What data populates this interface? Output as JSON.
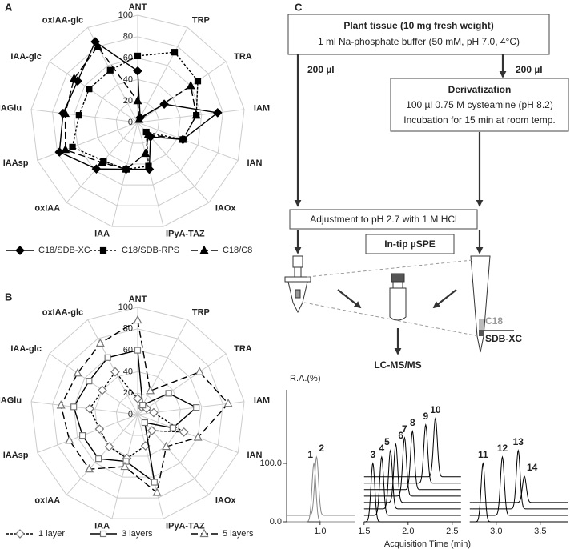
{
  "chart_data": [
    {
      "type": "radar",
      "panel_label": "A",
      "categories": [
        "ANT",
        "TRP",
        "TRA",
        "IAM",
        "IAN",
        "IAOx",
        "IPyA-TAZ",
        "IAA",
        "oxIAA",
        "IAAsp",
        "IAGlu",
        "IAA-glc",
        "oxIAA-glc"
      ],
      "rlim": [
        0,
        100
      ],
      "rticks": [
        0,
        20,
        40,
        60,
        80,
        100
      ],
      "grid": true,
      "legend": "bottom",
      "series": [
        {
          "name": "C18/SDB-XC",
          "color": "#000000",
          "marker": "diamond",
          "marker_fill": "#000000",
          "dash": "solid",
          "values": [
            48,
            5,
            30,
            75,
            45,
            18,
            45,
            45,
            58,
            78,
            70,
            68,
            85
          ]
        },
        {
          "name": "C18/SDB-RPS",
          "color": "#000000",
          "marker": "square",
          "marker_fill": "#000000",
          "dash": "dash",
          "values": [
            62,
            74,
            68,
            55,
            45,
            12,
            42,
            45,
            48,
            65,
            55,
            55,
            55
          ]
        },
        {
          "name": "C18/C8",
          "color": "#000000",
          "marker": "triangle",
          "marker_fill": "#000000",
          "dash": "longdash",
          "values": [
            20,
            3,
            60,
            55,
            45,
            15,
            30,
            45,
            50,
            72,
            68,
            72,
            80
          ]
        }
      ]
    },
    {
      "type": "radar",
      "panel_label": "B",
      "categories": [
        "ANT",
        "TRP",
        "TRA",
        "IAM",
        "IAN",
        "IAOx",
        "IPyA-TAZ",
        "IAA",
        "oxIAA",
        "IAAsp",
        "IAGlu",
        "IAA-glc",
        "oxIAA-glc"
      ],
      "rlim": [
        0,
        100
      ],
      "rticks": [
        0,
        20,
        40,
        60,
        80,
        100
      ],
      "grid": true,
      "legend": "bottom",
      "series": [
        {
          "name": "1 layer",
          "color": "#000000",
          "marker": "diamond",
          "marker_fill": "#ffffff",
          "marker_color": "#777777",
          "dash": "dash",
          "values": [
            15,
            8,
            10,
            15,
            46,
            20,
            30,
            42,
            40,
            38,
            45,
            40,
            45
          ]
        },
        {
          "name": "3 layers",
          "color": "#000000",
          "marker": "square",
          "marker_fill": "#ffffff",
          "marker_color": "#777777",
          "dash": "solid",
          "values": [
            60,
            10,
            35,
            55,
            35,
            10,
            65,
            45,
            55,
            55,
            60,
            55,
            60
          ]
        },
        {
          "name": "5 layers",
          "color": "#000000",
          "marker": "triangle",
          "marker_fill": "#ffffff",
          "marker_color": "#777777",
          "dash": "longdash",
          "values": [
            88,
            25,
            70,
            85,
            60,
            40,
            75,
            50,
            68,
            68,
            72,
            68,
            75
          ]
        }
      ]
    },
    {
      "type": "chromatogram",
      "xlabel": "Acquisition Time (min)",
      "ylabel": "R.A.(%)",
      "xlim": [
        0.62,
        3.82
      ],
      "ylim": [
        0,
        226
      ],
      "xbreaks": [
        [
          0.62,
          1.4
        ],
        [
          1.5,
          2.6
        ],
        [
          2.7,
          3.82
        ]
      ],
      "xticks": [
        {
          "value": 1,
          "label": "1.0"
        },
        {
          "value": 1.5,
          "label": "1.5"
        },
        {
          "value": 2,
          "label": "2.0"
        },
        {
          "value": 2.5,
          "label": "2.5"
        },
        {
          "value": 3,
          "label": "3.0"
        },
        {
          "value": 3.5,
          "label": "3.5"
        }
      ],
      "yticks": [
        {
          "value": 0,
          "label": "0.0"
        },
        {
          "value": 100,
          "label": "100.0"
        }
      ],
      "color": "#000000",
      "first_color": "#888888",
      "peaks": {
        "labels": [
          "1",
          "2",
          "3",
          "4",
          "5",
          "6",
          "7",
          "8",
          "9",
          "10",
          "11",
          "12",
          "13",
          "14"
        ],
        "x": [
          0.93,
          0.96,
          1.6,
          1.7,
          1.8,
          1.86,
          1.96,
          2.05,
          2.2,
          2.31,
          2.85,
          3.07,
          3.25,
          3.32
        ],
        "values": [
          100,
          100,
          100,
          100,
          100,
          100,
          100,
          100,
          100,
          100,
          100,
          100,
          100,
          45
        ]
      }
    }
  ],
  "diagram": {
    "panel_label": "C",
    "box1": {
      "title": "Plant tissue (10 mg fresh weight)",
      "text": "1 ml Na-phosphate buffer (50 mM, pH 7.0, 4°C)"
    },
    "left_volume": "200 µl",
    "right_volume": "200 µl",
    "box2": {
      "title": "Derivatization",
      "lines": [
        "100 µl 0.75 M cysteamine (pH 8.2)",
        "Incubation for 15 min at room temp."
      ]
    },
    "box3": "Adjustment to pH 2.7 with 1 M HCl",
    "spe": "In-tip µSPE",
    "phase_top": "C18",
    "phase_bottom": "SDB-XC",
    "instrument": "LC-MS/MS"
  }
}
